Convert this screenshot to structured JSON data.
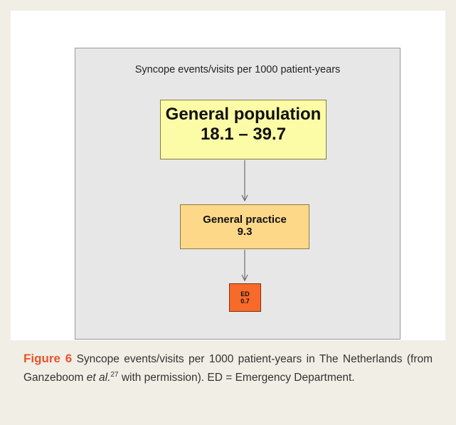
{
  "figure": {
    "title": "Syncope events/visits per 1000 patient-years",
    "nodes": [
      {
        "label": "General population",
        "value": "18.1 – 39.7"
      },
      {
        "label": "General practice",
        "value": "9.3"
      },
      {
        "label": "ED",
        "value": "0.7"
      }
    ]
  },
  "caption": {
    "label": "Figure 6",
    "text": "Syncope events/visits per 1000 patient-years in The Netherlands (from Ganzeboom",
    "italic": "et al.",
    "superscript": "27",
    "rest": "with permission). ED = Emergency Department."
  }
}
